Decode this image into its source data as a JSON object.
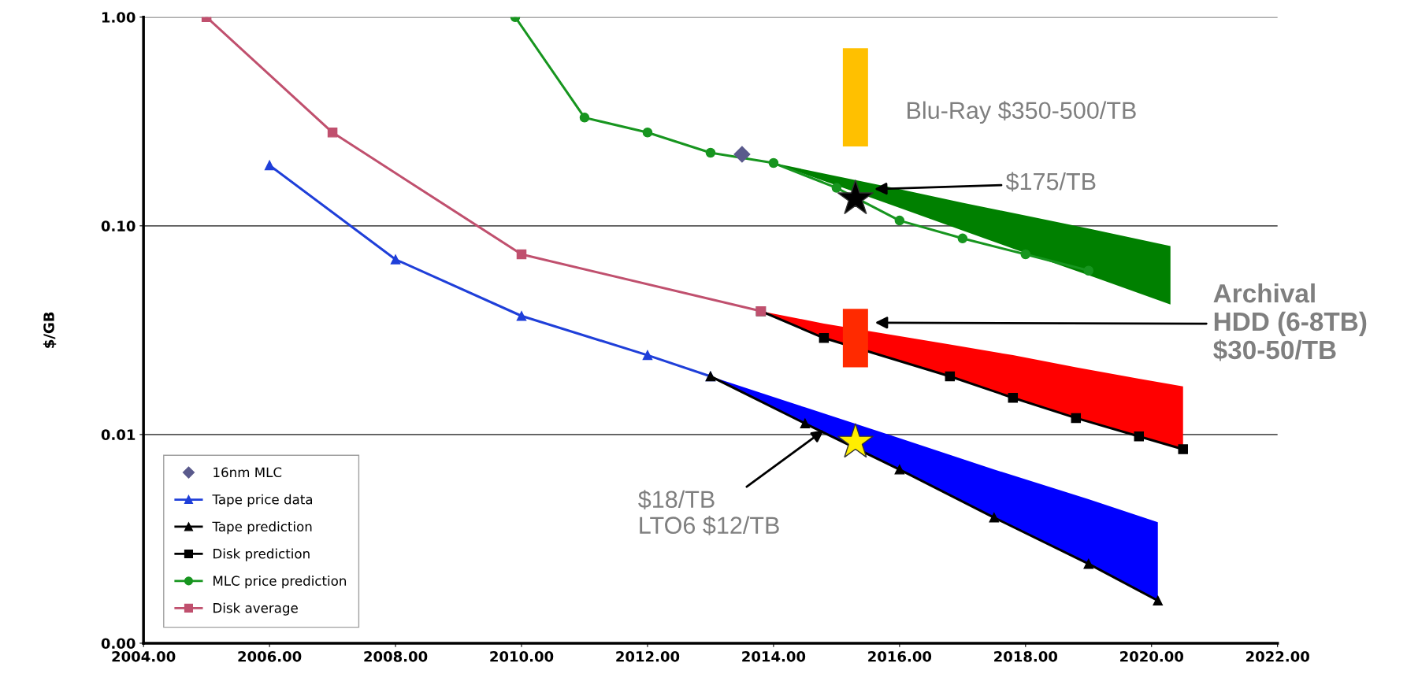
{
  "chart_data": {
    "type": "line",
    "ylabel": "$/GB",
    "log": "y",
    "grid": "y",
    "legend": "bottom left",
    "xlim": [
      2004,
      2022
    ],
    "xticks": [
      {
        "value": 2004,
        "label": "2004.00"
      },
      {
        "value": 2006,
        "label": "2006.00"
      },
      {
        "value": 2008,
        "label": "2008.00"
      },
      {
        "value": 2010,
        "label": "2010.00"
      },
      {
        "value": 2012,
        "label": "2012.00"
      },
      {
        "value": 2014,
        "label": "2014.00"
      },
      {
        "value": 2016,
        "label": "2016.00"
      },
      {
        "value": 2018,
        "label": "2018.00"
      },
      {
        "value": 2020,
        "label": "2020.00"
      },
      {
        "value": 2022,
        "label": "2022.00"
      }
    ],
    "ylim": [
      0.001,
      1
    ],
    "yticks": [
      {
        "value": 0.001,
        "label": "0.00"
      },
      {
        "value": 0.01,
        "label": "0.01"
      },
      {
        "value": 0.1,
        "label": "0.10"
      },
      {
        "value": 1,
        "label": "1.00"
      }
    ],
    "series": [
      {
        "name": "16nm MLC",
        "type": "scatter",
        "color": "#5a5a8c",
        "marker": "diamond",
        "x": [
          2013.5
        ],
        "values": [
          0.22
        ]
      },
      {
        "name": "Tape price data",
        "color": "#1f3fd9",
        "marker": "triangle",
        "x": [
          2006,
          2008,
          2010,
          2012,
          2013
        ],
        "values": [
          0.195,
          0.069,
          0.037,
          0.024,
          0.019
        ]
      },
      {
        "name": "Tape prediction",
        "color": "#000000",
        "marker": "triangle",
        "x": [
          2013,
          2014.5,
          2016,
          2017.5,
          2019,
          2020.1
        ],
        "values": [
          0.019,
          0.0113,
          0.0068,
          0.004,
          0.0024,
          0.0016
        ],
        "lower": [
          0.019,
          0.0113,
          0.0068,
          0.004,
          0.0024,
          0.0016
        ],
        "upper": [
          0.019,
          0.0135,
          0.0096,
          0.0068,
          0.0049,
          0.0038
        ]
      },
      {
        "name": "Disk prediction",
        "color": "#000000",
        "marker": "square",
        "x": [
          2013.8,
          2014.8,
          2016.8,
          2017.8,
          2018.8,
          2019.8,
          2020.5
        ],
        "values": [
          0.039,
          0.029,
          0.019,
          0.015,
          0.012,
          0.0098,
          0.0085
        ],
        "lower": [
          0.039,
          0.029,
          0.019,
          0.015,
          0.012,
          0.0098,
          0.0085
        ],
        "upper": [
          0.039,
          0.034,
          0.027,
          0.024,
          0.021,
          0.0185,
          0.017
        ]
      },
      {
        "name": "MLC price prediction",
        "color": "#17951f",
        "marker": "circle",
        "x": [
          2009.9,
          2011,
          2012,
          2013,
          2014,
          2015,
          2016,
          2017,
          2018,
          2019,
          2020.3
        ],
        "values": [
          1.0,
          0.33,
          0.28,
          0.224,
          0.2,
          0.152,
          0.106,
          0.087,
          0.073,
          0.061,
          null
        ],
        "lower": [
          null,
          null,
          null,
          null,
          0.2,
          0.156,
          0.122,
          0.095,
          0.074,
          0.058,
          0.042
        ],
        "upper": [
          null,
          null,
          null,
          null,
          0.2,
          0.173,
          0.15,
          0.129,
          0.112,
          0.097,
          0.08
        ]
      },
      {
        "name": "Disk average",
        "color": "#c0506e",
        "marker": "square",
        "x": [
          2005,
          2007,
          2010,
          2013.8
        ],
        "values": [
          1.0,
          0.28,
          0.073,
          0.039
        ]
      },
      {
        "type": "bar",
        "color": "#ffc000",
        "x": [
          2015.3
        ],
        "base": [
          0.24
        ],
        "values": [
          0.47
        ]
      },
      {
        "type": "bar",
        "color": "#ff2a00",
        "x": [
          2015.3
        ],
        "base": [
          0.021
        ],
        "values": [
          0.019
        ]
      },
      {
        "type": "scatter",
        "color": "#000000",
        "marker": "star",
        "x": [
          2015.3
        ],
        "values": [
          0.135
        ]
      },
      {
        "type": "scatter",
        "color": "#ffee00",
        "marker": "star",
        "x": [
          2015.3
        ],
        "values": [
          0.0092
        ]
      }
    ],
    "annotations": [
      "Blu-Ray $350-500/TB",
      {
        "text": "$175/TB",
        "x": 2015.6,
        "y": 0.15
      },
      "Archival\nHDD (6-8TB)\n$30-50/TB",
      {
        "text": "$18/TB\nLTO6 $12/TB",
        "x": 2014.8,
        "y": 0.0105
      }
    ]
  }
}
